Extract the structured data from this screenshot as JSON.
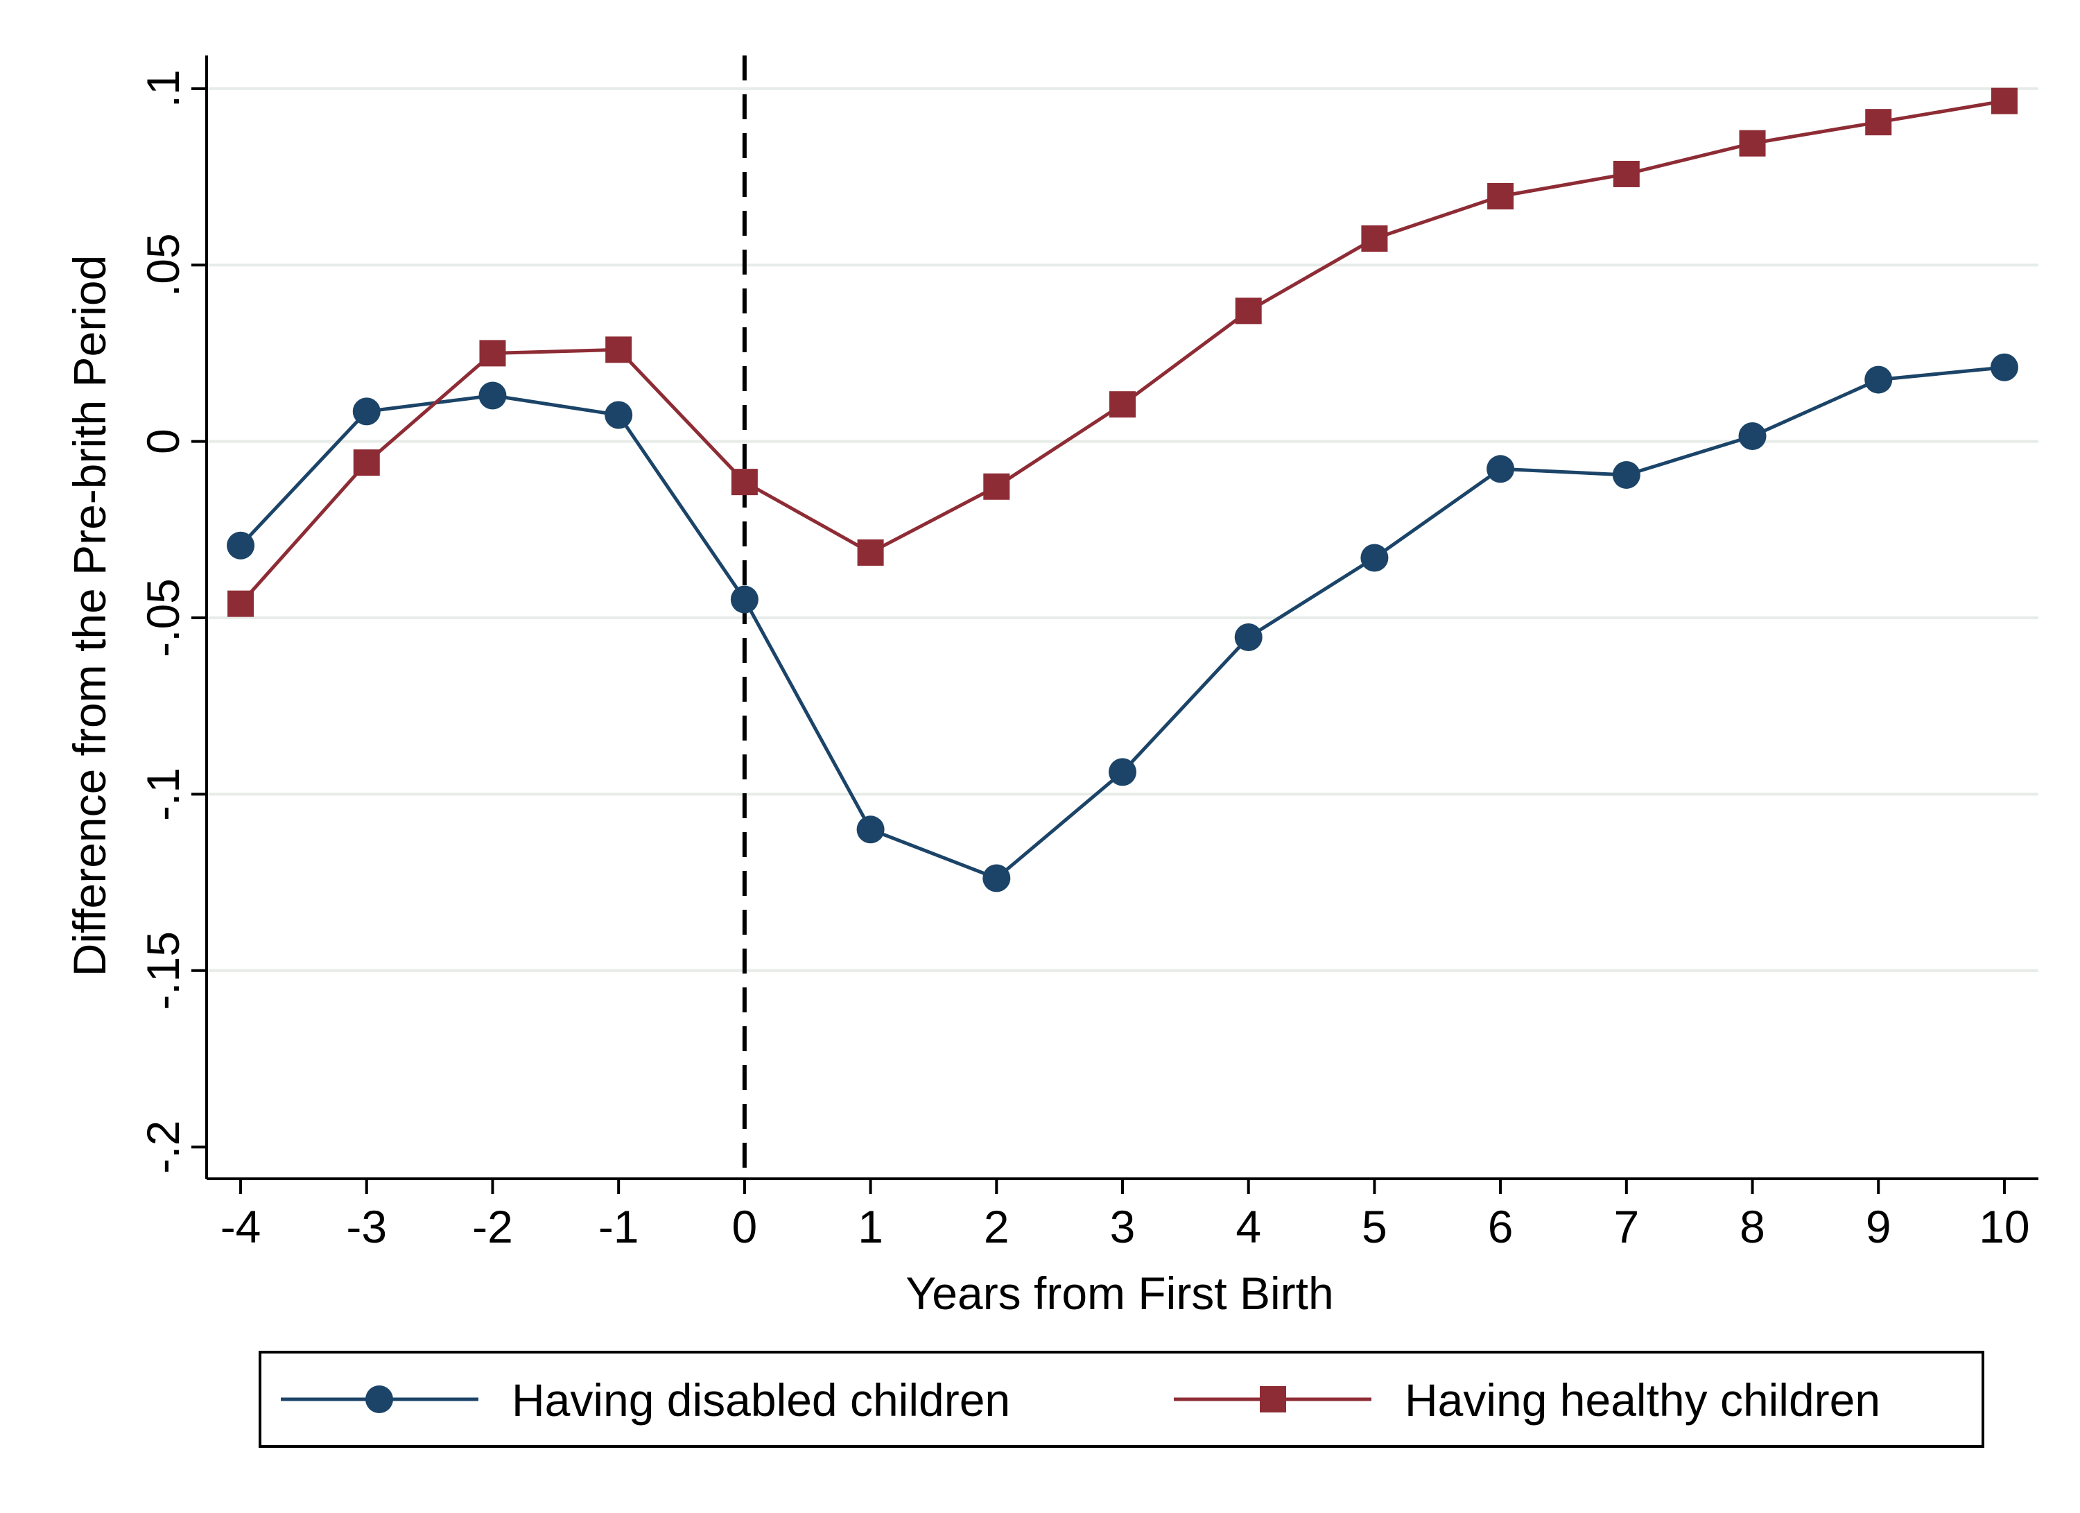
{
  "chart_data": {
    "type": "line",
    "xlabel": "Years from First Birth",
    "ylabel": "Difference from the Pre-brith Period",
    "x": [
      -4,
      -3,
      -2,
      -1,
      0,
      1,
      2,
      3,
      4,
      5,
      6,
      7,
      8,
      9,
      10
    ],
    "x_tick_labels": [
      "-4",
      "-3",
      "-2",
      "-1",
      "0",
      "1",
      "2",
      "3",
      "4",
      "5",
      "6",
      "7",
      "8",
      "9",
      "10"
    ],
    "y_ticks": [
      -0.2,
      -0.15,
      -0.1,
      -0.05,
      0,
      0.05,
      0.1
    ],
    "y_tick_labels": [
      "-.2",
      "-.15",
      "-.1",
      "-.05",
      "0",
      ".05",
      ".1"
    ],
    "xlim": [
      -4.27,
      10.27
    ],
    "ylim": [
      -0.209,
      0.1094
    ],
    "grid": "horizontal",
    "reference_line": {
      "x": 0,
      "style": "dashed"
    },
    "legend_position": "bottom",
    "series": [
      {
        "name": "Having disabled children",
        "color": "#1b4468",
        "marker": "circle",
        "values": [
          -0.0295,
          0.0085,
          0.013,
          0.0075,
          -0.0448,
          -0.11,
          -0.1238,
          -0.0937,
          -0.0555,
          -0.033,
          -0.0078,
          -0.0095,
          0.0015,
          0.0175,
          0.021
        ]
      },
      {
        "name": "Having healthy children",
        "color": "#8e2c35",
        "marker": "square",
        "values": [
          -0.046,
          -0.006,
          0.025,
          0.026,
          -0.0115,
          -0.0315,
          -0.0128,
          0.0105,
          0.037,
          0.0575,
          0.0695,
          0.0758,
          0.0845,
          0.0905,
          0.0965
        ]
      }
    ]
  }
}
